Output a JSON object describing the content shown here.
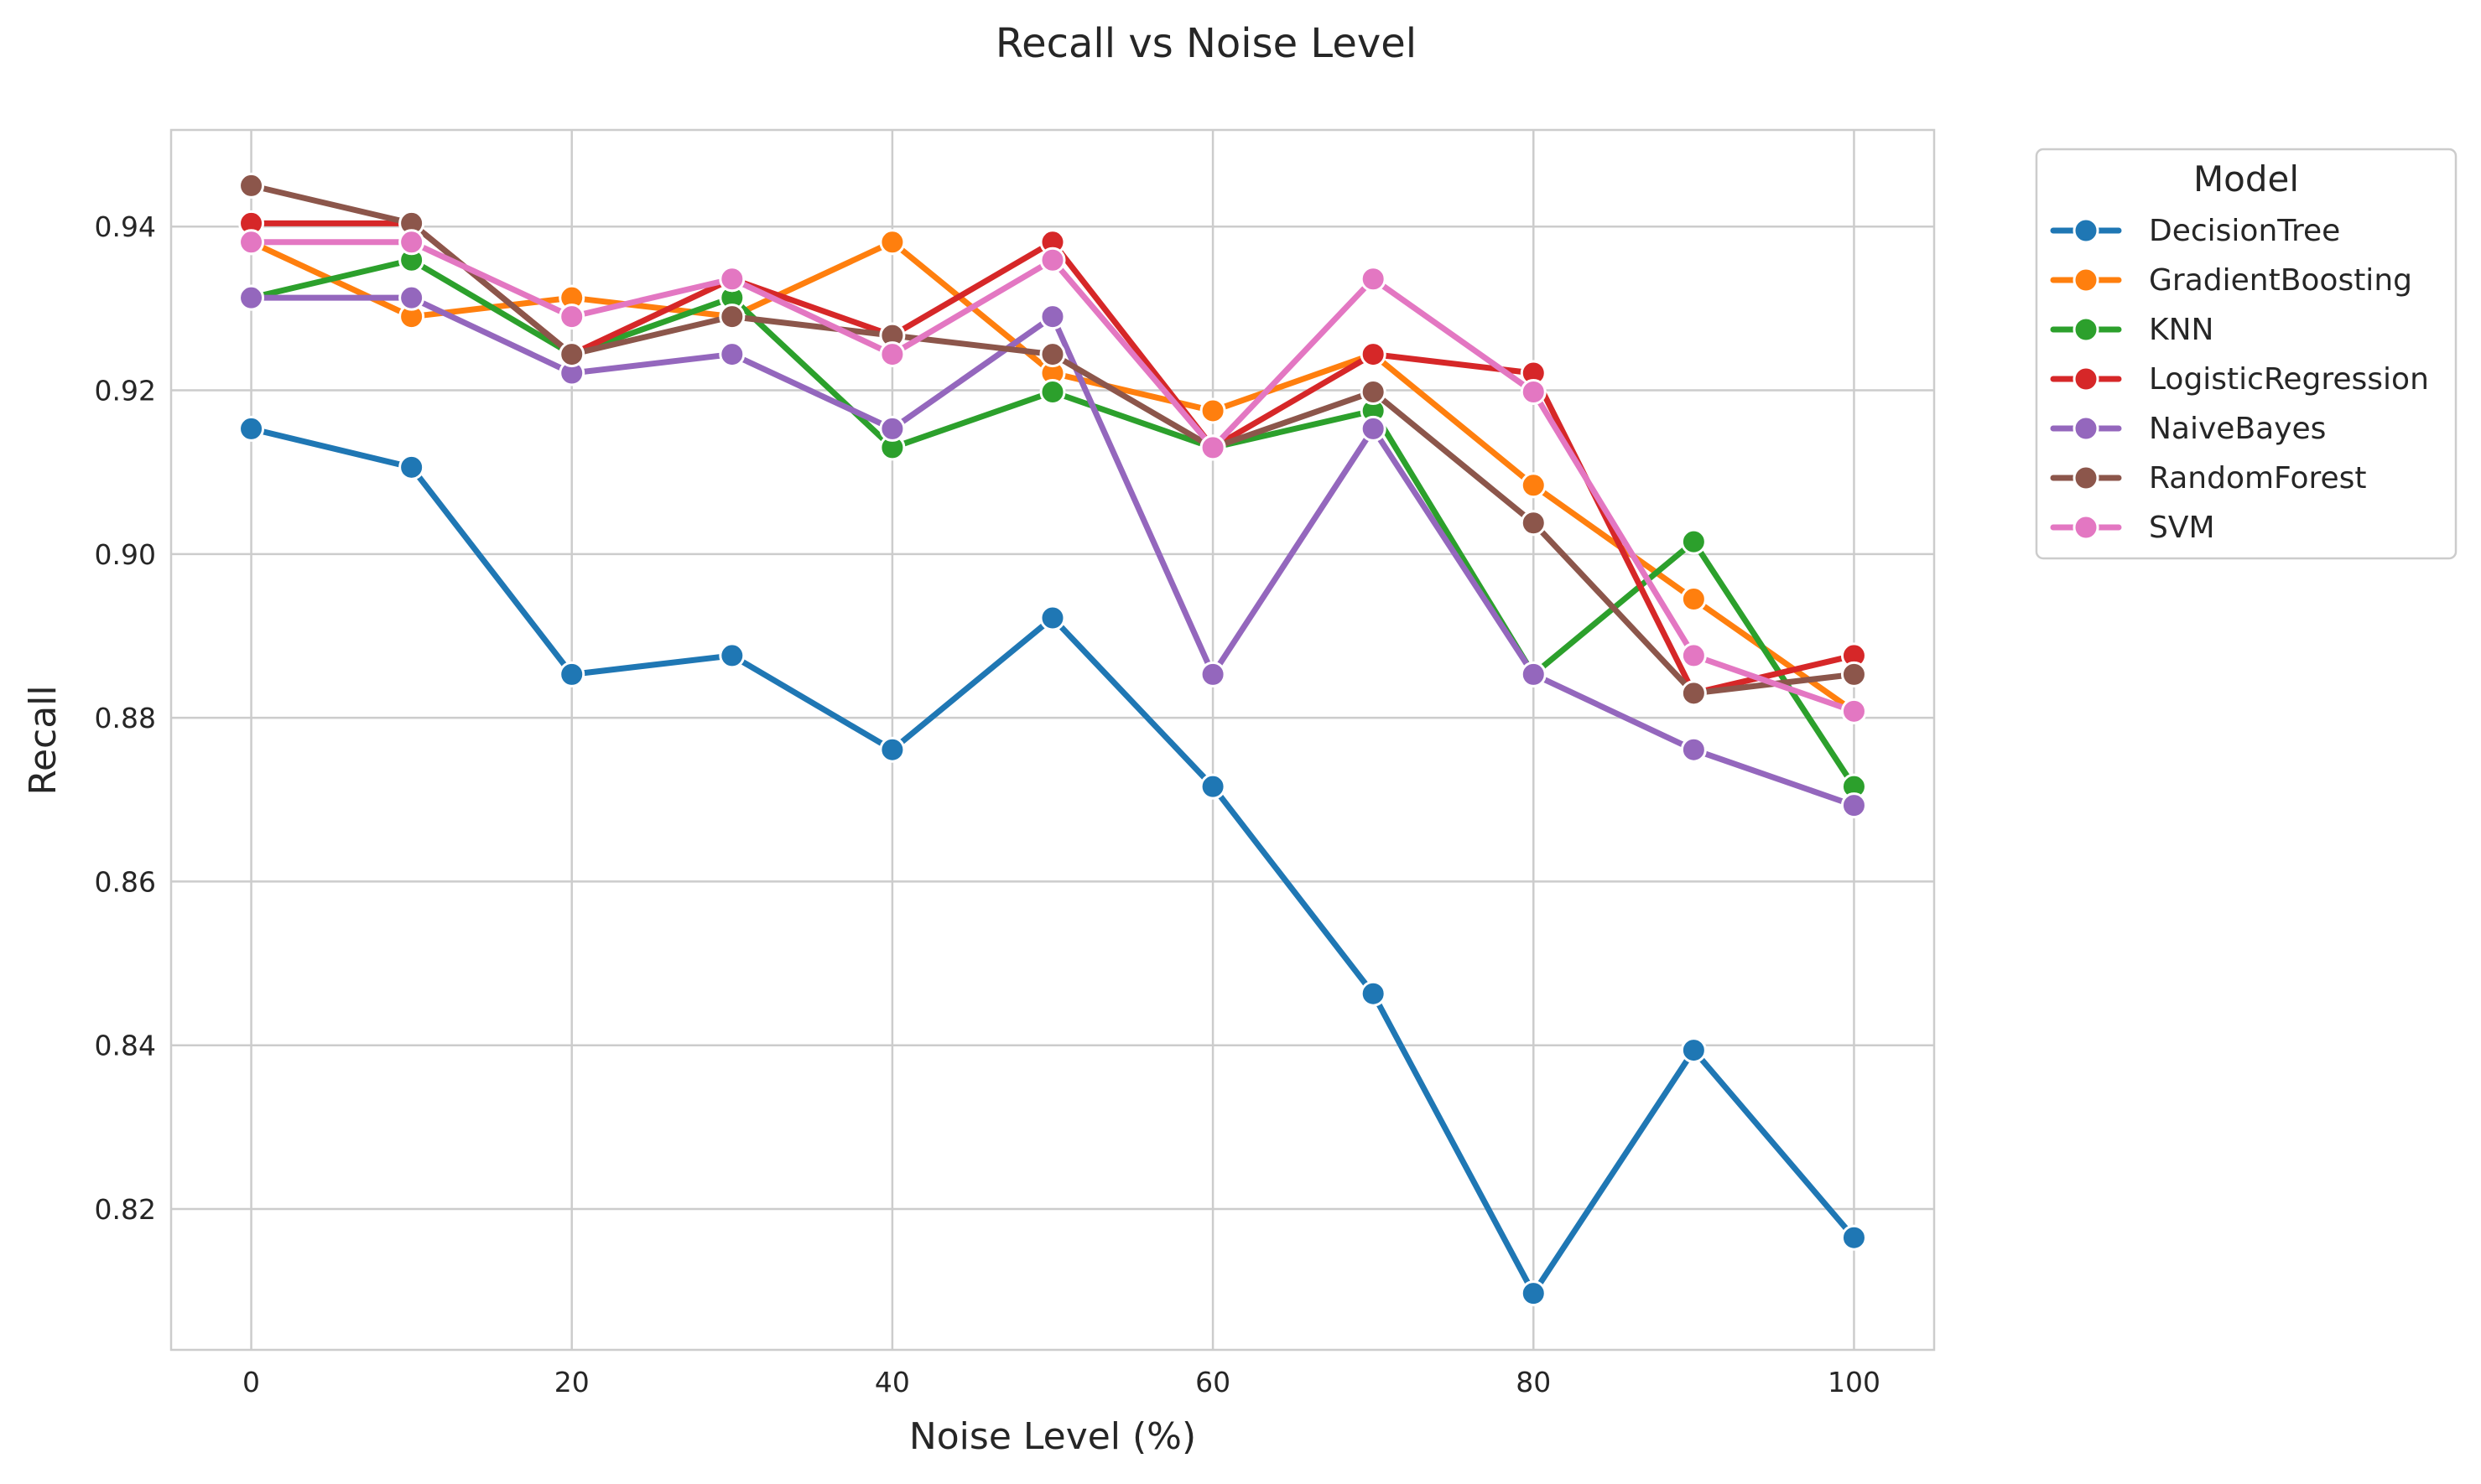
{
  "chart_data": {
    "type": "line",
    "title": "Recall vs Noise Level",
    "xlabel": "Noise Level (%)",
    "ylabel": "Recall",
    "x": [
      0,
      10,
      20,
      30,
      40,
      50,
      60,
      70,
      80,
      90,
      100
    ],
    "xticks": [
      0,
      20,
      40,
      60,
      80,
      100
    ],
    "xtick_labels": [
      "0",
      "20",
      "40",
      "60",
      "80",
      "100"
    ],
    "yticks": [
      0.82,
      0.84,
      0.86,
      0.88,
      0.9,
      0.92,
      0.94
    ],
    "ytick_labels": [
      "0.82",
      "0.84",
      "0.86",
      "0.88",
      "0.90",
      "0.92",
      "0.94"
    ],
    "xlim": [
      -5,
      105
    ],
    "ylim": [
      0.8028,
      0.9518
    ],
    "grid": true,
    "legend": {
      "title": "Model",
      "placement": "outside-right"
    },
    "series": [
      {
        "name": "DecisionTree",
        "color": "#1f77b4",
        "values": [
          0.9153,
          0.9106,
          0.8853,
          0.8876,
          0.8761,
          0.8922,
          0.8716,
          0.8463,
          0.8097,
          0.8394,
          0.8165
        ]
      },
      {
        "name": "GradientBoosting",
        "color": "#ff7f0e",
        "values": [
          0.9381,
          0.929,
          0.9313,
          0.929,
          0.9381,
          0.9221,
          0.9175,
          0.9244,
          0.9084,
          0.8945,
          0.8808
        ]
      },
      {
        "name": "KNN",
        "color": "#2ca02c",
        "values": [
          0.9313,
          0.9359,
          0.9244,
          0.9313,
          0.913,
          0.9198,
          0.913,
          0.9175,
          0.8853,
          0.9015,
          0.8716
        ]
      },
      {
        "name": "LogisticRegression",
        "color": "#d62728",
        "values": [
          0.9404,
          0.9404,
          0.9244,
          0.9336,
          0.9267,
          0.9381,
          0.913,
          0.9244,
          0.9221,
          0.883,
          0.8876
        ]
      },
      {
        "name": "NaiveBayes",
        "color": "#9467bd",
        "values": [
          0.9313,
          0.9313,
          0.9221,
          0.9244,
          0.9153,
          0.929,
          0.8853,
          0.9153,
          0.8853,
          0.8761,
          0.8693
        ]
      },
      {
        "name": "RandomForest",
        "color": "#8c564b",
        "values": [
          0.945,
          0.9404,
          0.9244,
          0.929,
          0.9267,
          0.9244,
          0.913,
          0.9198,
          0.9038,
          0.883,
          0.8853
        ]
      },
      {
        "name": "SVM",
        "color": "#e377c2",
        "values": [
          0.9381,
          0.9381,
          0.929,
          0.9336,
          0.9244,
          0.9359,
          0.913,
          0.9336,
          0.9198,
          0.8876,
          0.8808
        ]
      }
    ]
  }
}
